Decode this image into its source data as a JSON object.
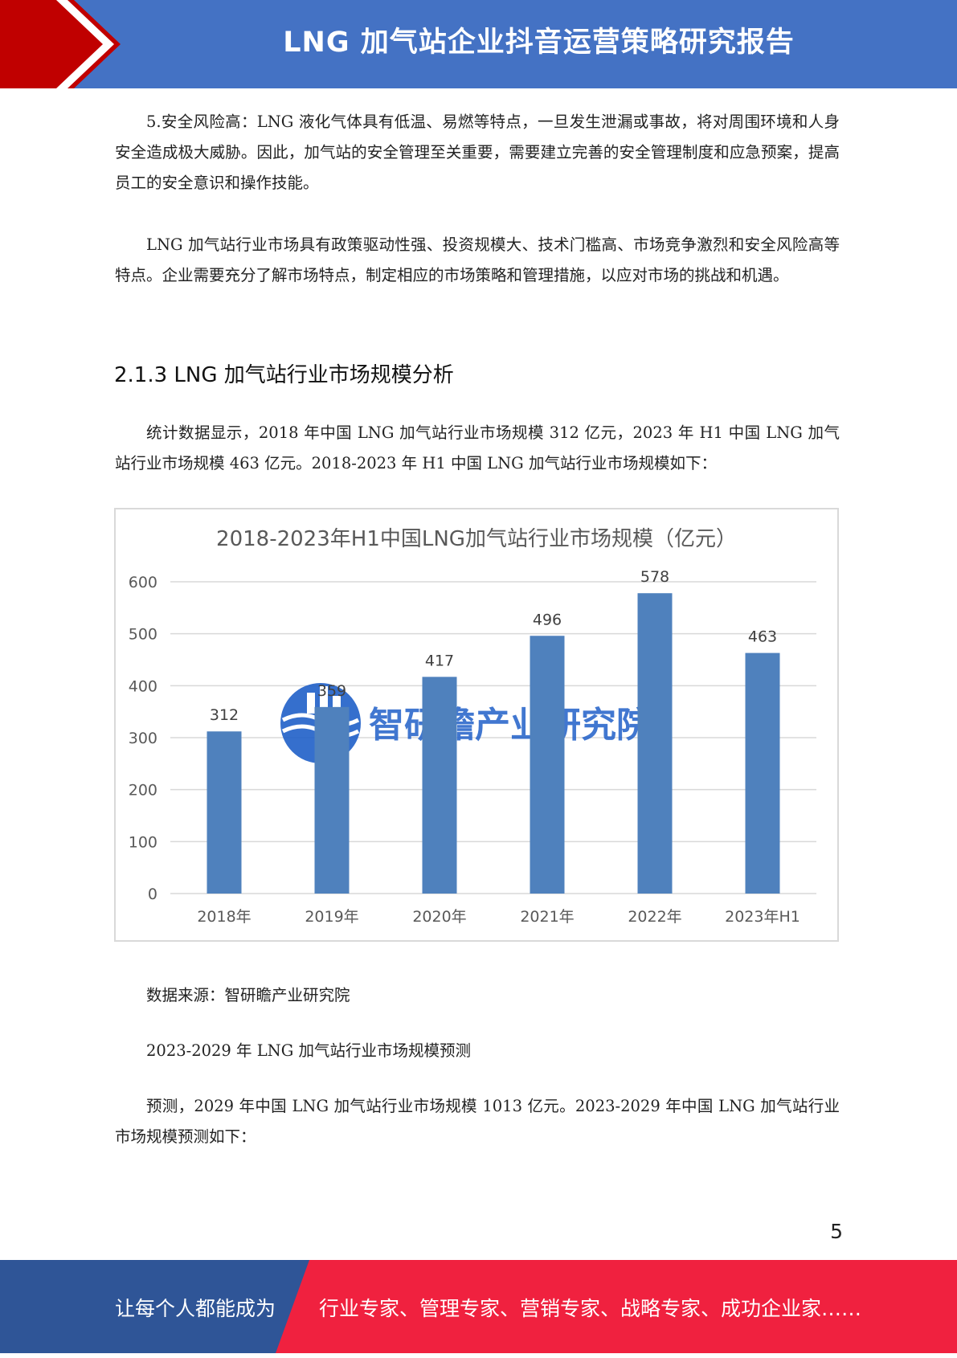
{
  "header": {
    "title": "LNG 加气站企业抖音运营策略研究报告"
  },
  "paragraphs": {
    "p_risk": "5.安全风险高：LNG 液化气体具有低温、易燃等特点，一旦发生泄漏或事故，将对周围环境和人身安全造成极大威胁。因此，加气站的安全管理至关重要，需要建立完善的安全管理制度和应急预案，提高员工的安全意识和操作技能。",
    "p_summary": "LNG 加气站行业市场具有政策驱动性强、投资规模大、技术门槛高、市场竞争激烈和安全风险高等特点。企业需要充分了解市场特点，制定相应的市场策略和管理措施，以应对市场的挑战和机遇。",
    "section_heading": "2.1.3 LNG 加气站行业市场规模分析",
    "p_stats": "统计数据显示，2018 年中国 LNG 加气站行业市场规模 312 亿元，2023 年 H1 中国 LNG 加气站行业市场规模 463 亿元。2018-2023 年 H1 中国 LNG 加气站行业市场规模如下：",
    "source": "数据来源：智研瞻产业研究院",
    "forecast_title": "2023-2029 年 LNG 加气站行业市场规模预测",
    "p_forecast": "预测，2029 年中国 LNG 加气站行业市场规模 1013 亿元。2023-2029 年中国 LNG 加气站行业市场规模预测如下："
  },
  "chart_data": {
    "type": "bar",
    "title": "2018-2023年H1中国LNG加气站行业市场规模（亿元）",
    "categories": [
      "2018年",
      "2019年",
      "2020年",
      "2021年",
      "2022年",
      "2023年H1"
    ],
    "values": [
      312,
      359,
      417,
      496,
      578,
      463
    ],
    "ylim": [
      0,
      600
    ],
    "yticks": [
      0,
      100,
      200,
      300,
      400,
      500,
      600
    ],
    "grid": true,
    "bar_color": "#4f81bd",
    "watermark": "智研瞻产业研究院"
  },
  "page_number": "5",
  "footer": {
    "left_text": "让每个人都能成为",
    "right_text": "行业专家、管理专家、营销专家、战略专家、成功企业家……"
  },
  "colors": {
    "header_blue": "#4472c4",
    "accent_red": "#c00000",
    "footer_blue": "#2f5597",
    "footer_red": "#f0213f"
  }
}
